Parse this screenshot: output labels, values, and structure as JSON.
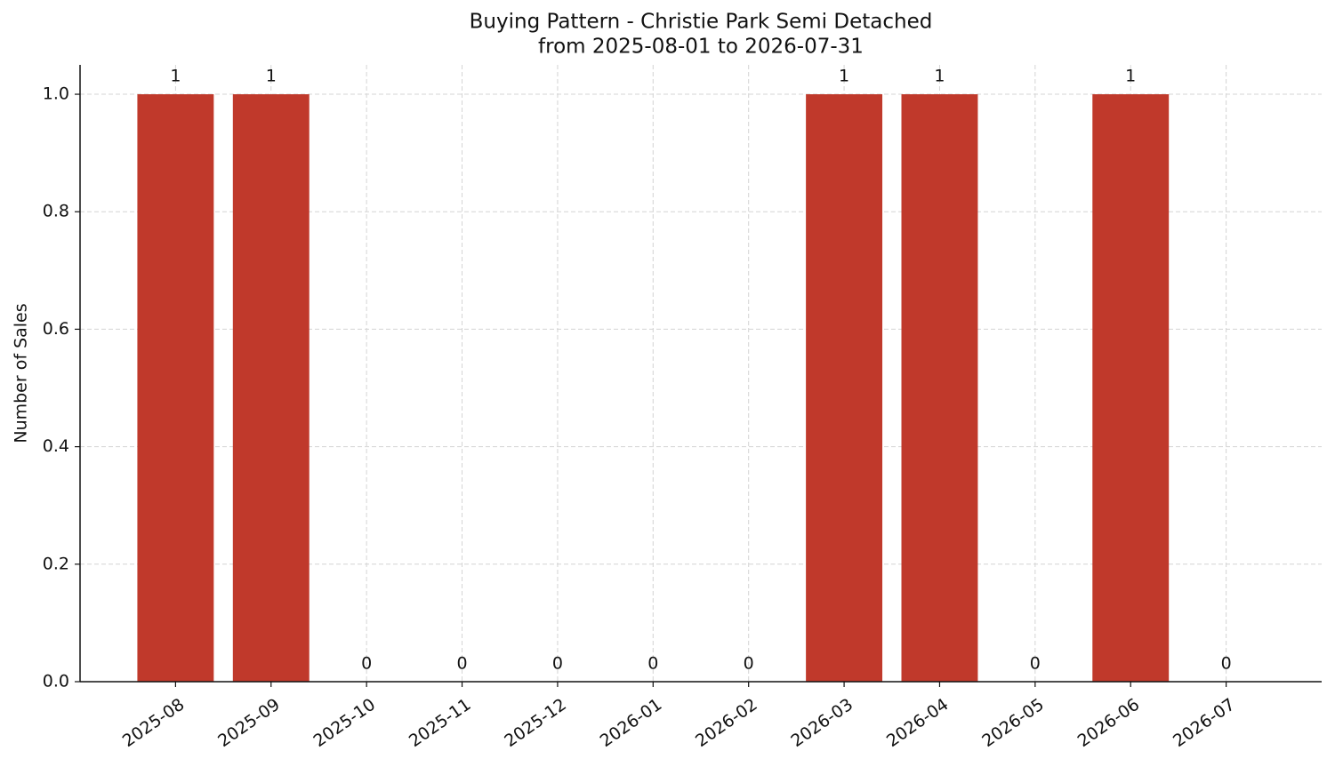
{
  "chart_data": {
    "type": "bar",
    "title": "Buying Pattern - Christie Park Semi Detached",
    "subtitle": "from 2025-08-01 to 2026-07-31",
    "y_label": "Number of Sales",
    "categories": [
      "2025-08",
      "2025-09",
      "2025-10",
      "2025-11",
      "2025-12",
      "2026-01",
      "2026-02",
      "2026-03",
      "2026-04",
      "2026-05",
      "2026-06",
      "2026-07"
    ],
    "values": [
      1,
      1,
      0,
      0,
      0,
      0,
      0,
      1,
      1,
      0,
      1,
      0
    ],
    "color": "#c0392b",
    "ylim": [
      0,
      1.05
    ],
    "yticks": [
      {
        "value": 0,
        "label": "0.0"
      },
      0.2,
      0.4,
      0.6,
      0.8,
      {
        "value": 1,
        "label": "1.0"
      }
    ],
    "grid": true
  }
}
